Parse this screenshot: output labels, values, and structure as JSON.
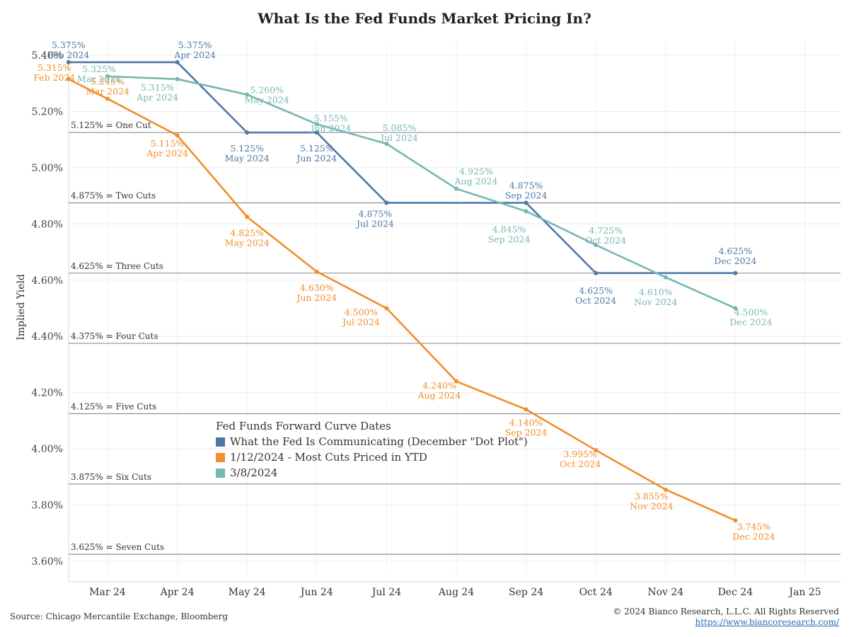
{
  "title": "What Is the Fed Funds Market Pricing In?",
  "source": "Source: Chicago Mercantile Exchange, Bloomberg",
  "copyright": "© 2024 Bianco Research, L.L.C. All Rights Reserved",
  "url": "https://www.biancoresearch.com/",
  "chart_data": {
    "type": "line",
    "title": "What Is the Fed Funds Market Pricing In?",
    "ylabel": "Implied Yield",
    "xlabel": "",
    "ylim": [
      3.57,
      5.45
    ],
    "y_ticks": [
      "5.40%",
      "5.20%",
      "5.00%",
      "4.80%",
      "4.60%",
      "4.40%",
      "4.20%",
      "4.00%",
      "3.80%",
      "3.60%"
    ],
    "y_tick_values": [
      5.4,
      5.2,
      5.0,
      4.8,
      4.6,
      4.4,
      4.2,
      4.0,
      3.8,
      3.6
    ],
    "x_ticks": [
      "Mar 24",
      "Apr 24",
      "May 24",
      "Jun 24",
      "Jul 24",
      "Aug 24",
      "Sep 24",
      "Oct 24",
      "Nov 24",
      "Dec 24",
      "Jan 25"
    ],
    "grid": true,
    "legend_title": "Fed Funds Forward Curve Dates",
    "legend_position": "lower-left-center",
    "reference_lines": [
      {
        "value": 5.125,
        "label": "5.125% = One Cut"
      },
      {
        "value": 4.875,
        "label": "4.875% = Two Cuts"
      },
      {
        "value": 4.625,
        "label": "4.625% = Three Cuts"
      },
      {
        "value": 4.375,
        "label": "4.375% = Four Cuts"
      },
      {
        "value": 4.125,
        "label": "4.125% = Five Cuts"
      },
      {
        "value": 3.875,
        "label": "3.875% = Six Cuts"
      },
      {
        "value": 3.625,
        "label": "3.625% = Seven Cuts"
      }
    ],
    "series": [
      {
        "name": "What the Fed Is Communicating (December \"Dot Plot\")",
        "color": "#4e79a7",
        "points": [
          {
            "x": "Feb 24",
            "y": 5.375,
            "value_label": "5.375%",
            "date_label": "Feb 2024"
          },
          {
            "x": "Apr 24",
            "y": 5.375,
            "value_label": "5.375%",
            "date_label": "Apr 2024"
          },
          {
            "x": "May 24",
            "y": 5.125,
            "value_label": "5.125%",
            "date_label": "May 2024"
          },
          {
            "x": "Jun 24",
            "y": 5.125,
            "value_label": "5.125%",
            "date_label": "Jun 2024"
          },
          {
            "x": "Jul 24",
            "y": 4.875,
            "value_label": "4.875%",
            "date_label": "Jul 2024"
          },
          {
            "x": "Sep 24",
            "y": 4.875,
            "value_label": "4.875%",
            "date_label": "Sep 2024"
          },
          {
            "x": "Oct 24",
            "y": 4.625,
            "value_label": "4.625%",
            "date_label": "Oct 2024"
          },
          {
            "x": "Dec 24",
            "y": 4.625,
            "value_label": "4.625%",
            "date_label": "Dec 2024"
          }
        ]
      },
      {
        "name": "1/12/2024 - Most Cuts Priced in YTD",
        "color": "#f28e2b",
        "points": [
          {
            "x": "Feb 24",
            "y": 5.315,
            "value_label": "5.315%",
            "date_label": "Feb 2024"
          },
          {
            "x": "Mar 24",
            "y": 5.245,
            "value_label": "5.245%",
            "date_label": "Mar 2024"
          },
          {
            "x": "Apr 24",
            "y": 5.115,
            "value_label": "5.115%",
            "date_label": "Apr 2024"
          },
          {
            "x": "May 24",
            "y": 4.825,
            "value_label": "4.825%",
            "date_label": "May 2024"
          },
          {
            "x": "Jun 24",
            "y": 4.63,
            "value_label": "4.630%",
            "date_label": "Jun 2024"
          },
          {
            "x": "Jul 24",
            "y": 4.5,
            "value_label": "4.500%",
            "date_label": "Jul 2024"
          },
          {
            "x": "Aug 24",
            "y": 4.24,
            "value_label": "4.240%",
            "date_label": "Aug 2024"
          },
          {
            "x": "Sep 24",
            "y": 4.14,
            "value_label": "4.140%",
            "date_label": "Sep 2024"
          },
          {
            "x": "Oct 24",
            "y": 3.995,
            "value_label": "3.995%",
            "date_label": "Oct 2024"
          },
          {
            "x": "Nov 24",
            "y": 3.855,
            "value_label": "3.855%",
            "date_label": "Nov 2024"
          },
          {
            "x": "Dec 24",
            "y": 3.745,
            "value_label": "3.745%",
            "date_label": "Dec 2024"
          }
        ]
      },
      {
        "name": "3/8/2024",
        "color": "#76b7b2",
        "points": [
          {
            "x": "Mar 24",
            "y": 5.325,
            "value_label": "5.325%",
            "date_label": "Mar 2024"
          },
          {
            "x": "Apr 24",
            "y": 5.315,
            "value_label": "5.315%",
            "date_label": "Apr 2024"
          },
          {
            "x": "May 24",
            "y": 5.26,
            "value_label": "5.260%",
            "date_label": "May 2024"
          },
          {
            "x": "Jun 24",
            "y": 5.155,
            "value_label": "5.155%",
            "date_label": "Jun 2024"
          },
          {
            "x": "Jul 24",
            "y": 5.085,
            "value_label": "5.085%",
            "date_label": "Jul 2024"
          },
          {
            "x": "Aug 24",
            "y": 4.925,
            "value_label": "4.925%",
            "date_label": "Aug 2024"
          },
          {
            "x": "Sep 24",
            "y": 4.845,
            "value_label": "4.845%",
            "date_label": "Sep 2024"
          },
          {
            "x": "Oct 24",
            "y": 4.725,
            "value_label": "4.725%",
            "date_label": "Oct 2024"
          },
          {
            "x": "Nov 24",
            "y": 4.61,
            "value_label": "4.610%",
            "date_label": "Nov 2024"
          },
          {
            "x": "Dec 24",
            "y": 4.5,
            "value_label": "4.500%",
            "date_label": "Dec 2024"
          }
        ]
      }
    ]
  }
}
